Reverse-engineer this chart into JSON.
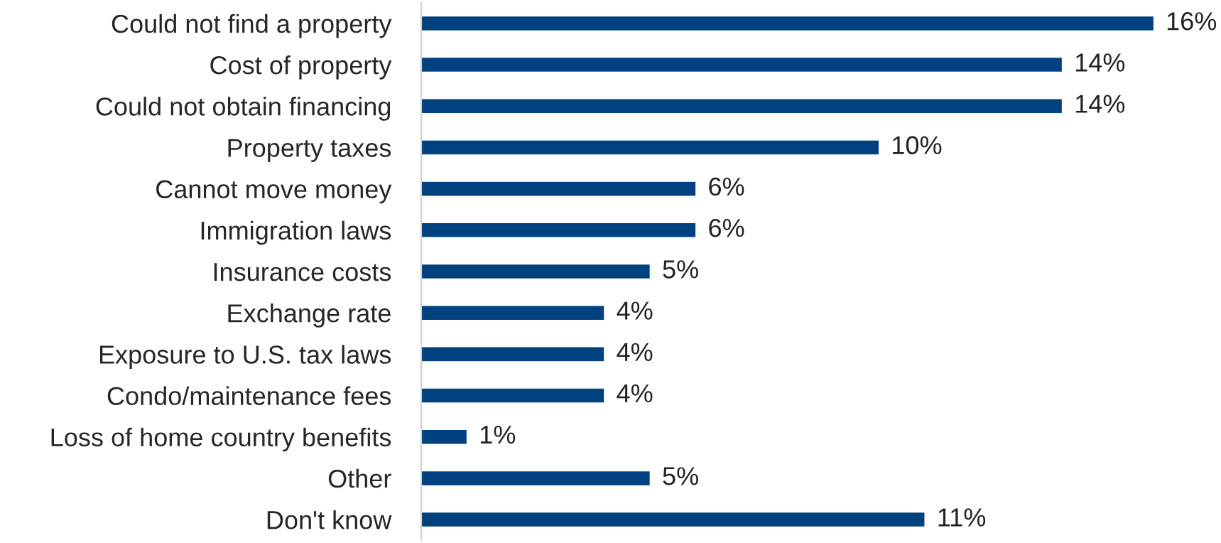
{
  "chart_data": {
    "type": "bar",
    "orientation": "horizontal",
    "categories": [
      "Could not find a property",
      "Cost of property",
      "Could not obtain financing",
      "Property taxes",
      "Cannot move money",
      "Immigration laws",
      "Insurance costs",
      "Exchange rate",
      "Exposure to U.S. tax laws",
      "Condo/maintenance fees",
      "Loss of home country benefits",
      "Other",
      "Don't know"
    ],
    "values": [
      16,
      14,
      14,
      10,
      6,
      6,
      5,
      4,
      4,
      4,
      1,
      5,
      11
    ],
    "value_labels": [
      "16%",
      "14%",
      "14%",
      "10%",
      "6%",
      "6%",
      "5%",
      "4%",
      "4%",
      "4%",
      "1%",
      "5%",
      "11%"
    ],
    "color": "#00427f",
    "grid": false,
    "legend": false
  }
}
